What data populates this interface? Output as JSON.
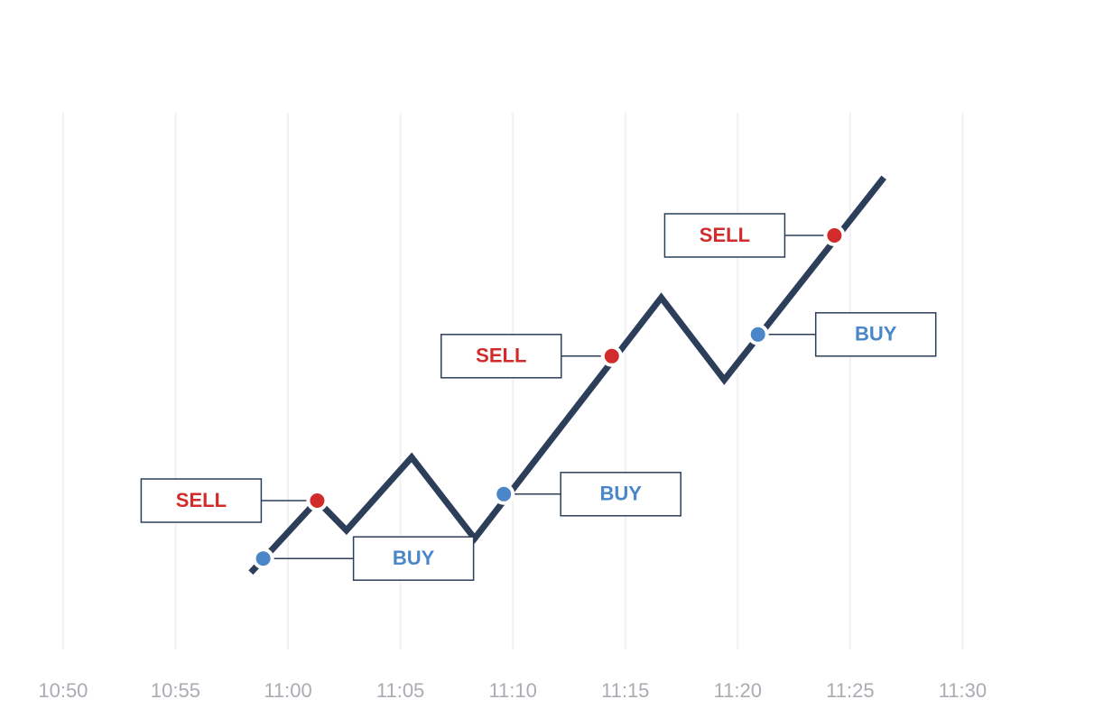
{
  "chart_data": {
    "type": "line",
    "x": [
      658.35,
      661.3,
      662.6,
      665.5,
      668.3,
      676.6,
      679.4,
      686.5
    ],
    "values": [
      14.2,
      27.5,
      22,
      35.5,
      20.5,
      65,
      49.8,
      87.2
    ],
    "color": "#2c3e5a",
    "xlim": [
      648.8,
      694.8
    ],
    "ylim": [
      0,
      120
    ],
    "xticks": [
      {
        "value": 650,
        "label": "10:50"
      },
      {
        "value": 655,
        "label": "10:55"
      },
      {
        "value": 660,
        "label": "11:00"
      },
      {
        "value": 665,
        "label": "11:05"
      },
      {
        "value": 670,
        "label": "11:10"
      },
      {
        "value": 675,
        "label": "11:15"
      },
      {
        "value": 680,
        "label": "11:20"
      },
      {
        "value": 685,
        "label": "11:25"
      },
      {
        "value": 690,
        "label": "11:30"
      }
    ],
    "grid": true,
    "annotations": [
      {
        "text": "BUY",
        "x": 658.9,
        "y": 16.8,
        "color": "#4a86c8"
      },
      {
        "text": "SELL",
        "x": 661.3,
        "y": 27.5,
        "color": "#d22b2b"
      },
      {
        "text": "BUY",
        "x": 669.6,
        "y": 28.7,
        "color": "#4a86c8"
      },
      {
        "text": "SELL",
        "x": 674.4,
        "y": 54.2,
        "color": "#d22b2b"
      },
      {
        "text": "BUY",
        "x": 680.9,
        "y": 58.2,
        "color": "#4a86c8"
      },
      {
        "text": "SELL",
        "x": 684.3,
        "y": 76.5,
        "color": "#d22b2b"
      }
    ]
  }
}
